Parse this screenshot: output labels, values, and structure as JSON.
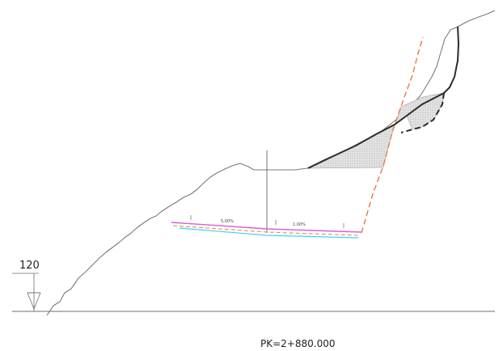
{
  "section": {
    "elevation_label": "120",
    "station_label": "PK=2+880.000",
    "slope_left": "5,00%",
    "slope_right": "1,00%"
  },
  "colors": {
    "terrain": "#7a7a7a",
    "rock_line": "#2b2b2b",
    "cut_slope": "#e8804a",
    "road_top": "#d95fd2",
    "road_base": "#3ad7e8",
    "hatch_fill": "#d6d6d6",
    "axis": "#6f6f6f"
  }
}
